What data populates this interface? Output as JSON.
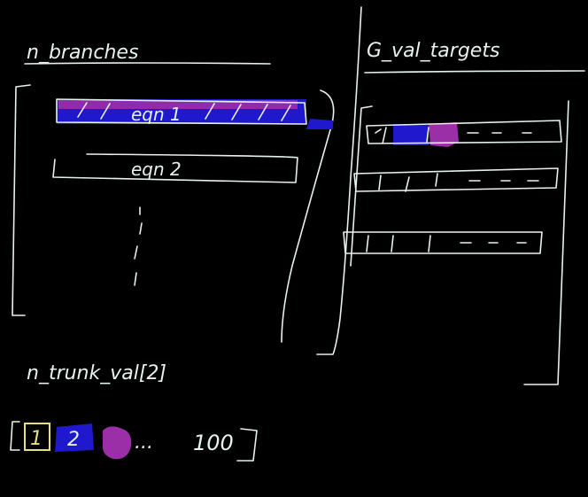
{
  "left_panel": {
    "title": "n_branches",
    "equations": [
      "eqn 1",
      "eqn 2"
    ]
  },
  "right_panel": {
    "title": "G_val_targets",
    "rows": [
      {
        "marks": [
          "|",
          "|",
          "|",
          "-",
          "-",
          "-"
        ]
      },
      {
        "marks": [
          "|",
          "|",
          "|",
          "-",
          "-",
          "-"
        ]
      },
      {
        "marks": [
          "|",
          "|",
          "|",
          "-",
          "-",
          "-"
        ]
      }
    ]
  },
  "bottom": {
    "title": "n_trunk_val[2]",
    "array_cells": [
      "1",
      "2",
      "",
      "...",
      "100"
    ]
  },
  "colors": {
    "chalk": "#e6f2ee",
    "blue": "#1f18cc",
    "purple": "#9b2fa8",
    "yellow": "#e7e07a",
    "background": "#000000"
  }
}
